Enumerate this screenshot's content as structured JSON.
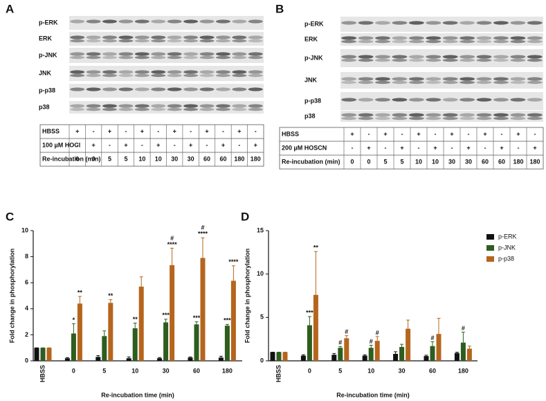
{
  "panels": [
    {
      "label": "A",
      "blot_labels": [
        "p-ERK",
        "ERK",
        "p-JNK",
        "JNK",
        "p-p38",
        "p38"
      ],
      "table": {
        "rows": [
          {
            "label": "HBSS",
            "cells": [
              "+",
              "-",
              "+",
              "-",
              "+",
              "-",
              "+",
              "-",
              "+",
              "-",
              "+",
              "-"
            ]
          },
          {
            "label": "100 µM HOCl",
            "cells": [
              "-",
              "+",
              "-",
              "+",
              "-",
              "+",
              "-",
              "+",
              "-",
              "+",
              "-",
              "+"
            ]
          },
          {
            "label": "Re-incubation (min)",
            "cells": [
              "0",
              "0",
              "5",
              "5",
              "10",
              "10",
              "30",
              "30",
              "60",
              "60",
              "180",
              "180"
            ]
          }
        ]
      }
    },
    {
      "label": "B",
      "blot_labels": [
        "p-ERK",
        "ERK",
        "p-JNK",
        "JNK",
        "p-p38",
        "p38"
      ],
      "table": {
        "rows": [
          {
            "label": "HBSS",
            "cells": [
              "+",
              "-",
              "+",
              "-",
              "+",
              "-",
              "+",
              "-",
              "+",
              "-",
              "+",
              "-"
            ]
          },
          {
            "label": "200 µM HOSCN",
            "cells": [
              "-",
              "+",
              "-",
              "+",
              "-",
              "+",
              "-",
              "+",
              "-",
              "+",
              "-",
              "+"
            ]
          },
          {
            "label": "Re-incubation (min)",
            "cells": [
              "0",
              "0",
              "5",
              "5",
              "10",
              "10",
              "30",
              "30",
              "60",
              "60",
              "180",
              "180"
            ]
          }
        ]
      }
    }
  ],
  "chart_data": [
    {
      "type": "bar",
      "label": "C",
      "ylabel": "Fold change in phosphorylation",
      "xlabel": "Re-incubation time (min)",
      "categories": [
        "HBSS",
        "0",
        "5",
        "10",
        "30",
        "60",
        "180"
      ],
      "ylim": [
        0,
        10
      ],
      "yticks": [
        0,
        2,
        4,
        6,
        8,
        10
      ],
      "series": [
        {
          "name": "p-ERK",
          "color": "#111111",
          "values": [
            1,
            0.2,
            0.3,
            0.2,
            0.2,
            0.25,
            0.25
          ],
          "errors": [
            0,
            0.05,
            0.1,
            0.1,
            0.05,
            0.05,
            0.1
          ],
          "annotations": [
            null,
            null,
            null,
            null,
            null,
            null,
            null
          ]
        },
        {
          "name": "p-JNK",
          "color": "#2e5d1f",
          "values": [
            1,
            2.1,
            1.9,
            2.5,
            2.95,
            2.8,
            2.7
          ],
          "errors": [
            0,
            0.75,
            0.4,
            0.4,
            0.25,
            0.2,
            0.1
          ],
          "annotations": [
            null,
            [
              "*"
            ],
            null,
            [
              "**"
            ],
            [
              "***"
            ],
            [
              "***"
            ],
            [
              "***"
            ]
          ]
        },
        {
          "name": "p-p38",
          "color": "#b5651d",
          "values": [
            1,
            4.4,
            4.45,
            5.7,
            7.35,
            7.9,
            6.15
          ],
          "errors": [
            0,
            0.55,
            0.25,
            0.75,
            1.3,
            1.55,
            1.15
          ],
          "annotations": [
            null,
            [
              "**"
            ],
            [
              "**"
            ],
            null,
            [
              "#",
              "****"
            ],
            [
              "#",
              "****"
            ],
            [
              "****"
            ]
          ]
        }
      ]
    },
    {
      "type": "bar",
      "label": "D",
      "ylabel": "Fold change in phosphorylation",
      "xlabel": "Re-incubation time (min)",
      "categories": [
        "HBSS",
        "0",
        "5",
        "10",
        "30",
        "60",
        "180"
      ],
      "ylim": [
        0,
        15
      ],
      "yticks": [
        0,
        5,
        10,
        15
      ],
      "legend": "right",
      "series": [
        {
          "name": "p-ERK",
          "color": "#111111",
          "values": [
            1,
            0.6,
            0.7,
            0.6,
            0.8,
            0.55,
            0.9
          ],
          "errors": [
            0,
            0.1,
            0.15,
            0.1,
            0.25,
            0.1,
            0.1
          ],
          "annotations": [
            null,
            null,
            null,
            null,
            null,
            null,
            null
          ]
        },
        {
          "name": "p-JNK",
          "color": "#2e5d1f",
          "values": [
            1,
            4.1,
            1.5,
            1.5,
            1.6,
            1.7,
            2.1
          ],
          "errors": [
            0,
            1.0,
            0.15,
            0.3,
            0.3,
            0.5,
            1.2
          ],
          "annotations": [
            null,
            [
              "***"
            ],
            [
              "#"
            ],
            [
              "#"
            ],
            null,
            [
              "#"
            ],
            [
              "#"
            ]
          ]
        },
        {
          "name": "p-p38",
          "color": "#b5651d",
          "values": [
            1,
            7.6,
            2.6,
            2.3,
            3.7,
            3.1,
            1.4
          ],
          "errors": [
            0,
            5.0,
            0.3,
            0.5,
            1.0,
            1.8,
            0.3
          ],
          "annotations": [
            null,
            [
              "**"
            ],
            [
              "#"
            ],
            [
              "#"
            ],
            null,
            null,
            null
          ]
        }
      ]
    }
  ]
}
